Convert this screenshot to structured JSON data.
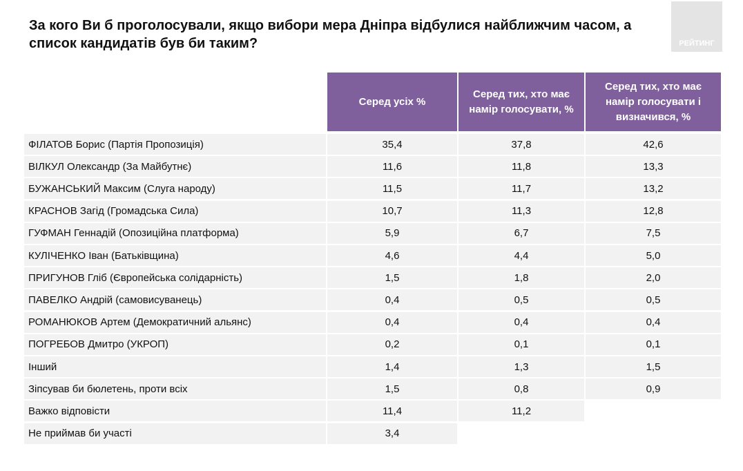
{
  "header": {
    "title": "За кого Ви б проголосували, якщо вибори мера Дніпра відбулися найближчим часом, а список кандидатів був би таким?",
    "logo": "РЕЙТИНГ"
  },
  "table": {
    "columns": [
      "Серед усіх %",
      "Серед тих, хто має намір голосувати, %",
      "Серед тих, хто має намір голосувати і визначився, %"
    ],
    "rows": [
      [
        "ФІЛАТОВ Борис (Партія Пропозиція)",
        "35,4",
        "37,8",
        "42,6"
      ],
      [
        "ВІЛКУЛ Олександр (За Майбутнє)",
        "11,6",
        "11,8",
        "13,3"
      ],
      [
        "БУЖАНСЬКИЙ Максим (Слуга народу)",
        "11,5",
        "11,7",
        "13,2"
      ],
      [
        "КРАСНОВ Загід (Громадська Сила)",
        "10,7",
        "11,3",
        "12,8"
      ],
      [
        "ГУФМАН Геннадій (Опозиційна платформа)",
        "5,9",
        "6,7",
        "7,5"
      ],
      [
        "КУЛІЧЕНКО Іван (Батьківщина)",
        "4,6",
        "4,4",
        "5,0"
      ],
      [
        "ПРИГУНОВ Гліб (Європейська солідарність)",
        "1,5",
        "1,8",
        "2,0"
      ],
      [
        "ПАВЕЛКО Андрій (самовисуванець)",
        "0,4",
        "0,5",
        "0,5"
      ],
      [
        "РОМАНЮКОВ Артем (Демократичний альянс)",
        "0,4",
        "0,4",
        "0,4"
      ],
      [
        "ПОГРЕБОВ Дмитро (УКРОП)",
        "0,2",
        "0,1",
        "0,1"
      ],
      [
        "Інший",
        "1,4",
        "1,3",
        "1,5"
      ],
      [
        "Зіпсував би бюлетень, проти всіх",
        "1,5",
        "0,8",
        "0,9"
      ],
      [
        "Важко відповісти",
        "11,4",
        "11,2"
      ],
      [
        "Не приймав би участі",
        "3,4"
      ]
    ]
  }
}
